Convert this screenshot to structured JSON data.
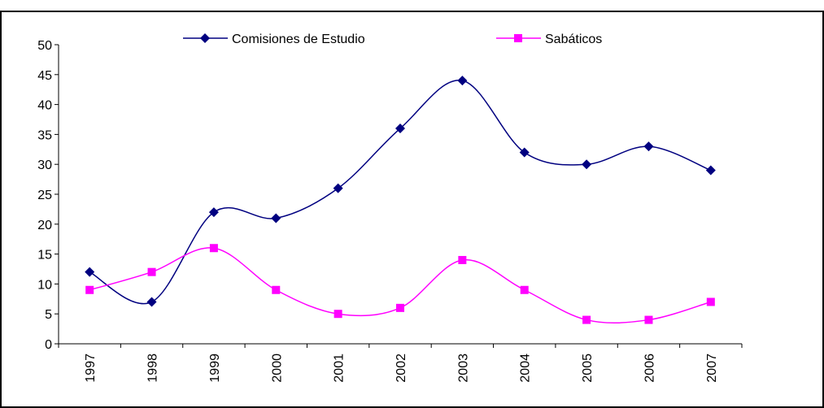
{
  "chart_data": {
    "type": "line",
    "smooth": true,
    "categories": [
      "1997",
      "1998",
      "1999",
      "2000",
      "2001",
      "2002",
      "2003",
      "2004",
      "2005",
      "2006",
      "2007"
    ],
    "series": [
      {
        "name": "Comisiones de Estudio",
        "color": "#000080",
        "marker": "diamond",
        "values": [
          12,
          7,
          22,
          21,
          26,
          36,
          44,
          32,
          30,
          33,
          29
        ]
      },
      {
        "name": "Sabáticos",
        "color": "#ff00ff",
        "marker": "square",
        "values": [
          9,
          12,
          16,
          9,
          5,
          6,
          14,
          9,
          4,
          4,
          7
        ]
      }
    ],
    "ylim": [
      0,
      50
    ],
    "yticks": [
      0,
      5,
      10,
      15,
      20,
      25,
      30,
      35,
      40,
      45,
      50
    ],
    "grid": false,
    "legend": "top"
  }
}
